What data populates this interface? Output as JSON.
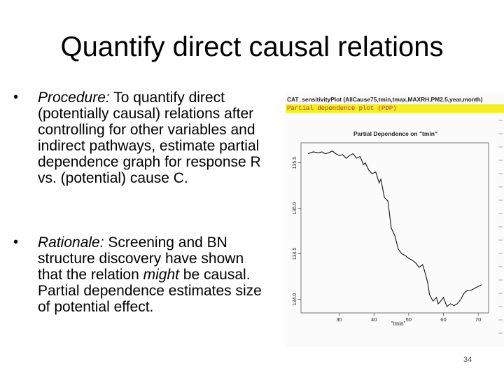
{
  "slide": {
    "title": "Quantify direct causal relations",
    "page_number": "34"
  },
  "bullets": [
    {
      "dot": "•",
      "label": "Procedure:",
      "text": " To quantify direct (potentially causal) relations after controlling for other variables and indirect pathways, estimate partial dependence graph for response R vs. (potential) cause C."
    },
    {
      "dot": "•",
      "label": "Rationale:",
      "text_a": "  Screening and BN structure discovery have shown that the relation ",
      "text_em": "might",
      "text_b": " be causal. Partial dependence estimates size of potential effect."
    }
  ],
  "screenshot": {
    "command": "CAT_sensitivityPlot (AllCause75,tmin,tmax,MAXRH,PM2.5,year,month)",
    "subtitle": "Partial dependence plot (PDP)"
  },
  "chart_data": {
    "type": "line",
    "title": "Partial Dependence on \"tmin\"",
    "xlabel": "\"tmin\"",
    "ylabel": "",
    "xlim": [
      19,
      73
    ],
    "ylim": [
      133.85,
      135.72
    ],
    "x_ticks": [
      30,
      40,
      50,
      60,
      70
    ],
    "y_ticks": [
      134.0,
      134.5,
      135.0,
      135.5
    ],
    "y_tick_labels": [
      "134.0",
      "134.5",
      "135.0",
      "135.5"
    ],
    "grid": false,
    "series": [
      {
        "x": [
          21,
          22.5,
          24,
          25,
          26,
          27,
          28,
          29,
          30,
          31,
          32,
          33,
          34,
          35,
          36,
          37,
          37.5,
          38.5,
          39.5,
          40.5,
          41.5,
          42,
          43,
          44,
          45,
          46,
          47,
          48,
          49,
          50,
          51,
          52,
          53,
          54,
          54.5,
          55,
          55.5,
          56,
          57,
          58,
          58.5,
          59,
          60,
          61,
          62,
          63,
          64,
          65,
          66,
          67,
          68,
          69,
          70,
          71
        ],
        "values": [
          135.6,
          135.62,
          135.61,
          135.62,
          135.6,
          135.61,
          135.63,
          135.6,
          135.58,
          135.59,
          135.55,
          135.58,
          135.6,
          135.55,
          135.57,
          135.48,
          135.5,
          135.42,
          135.38,
          135.4,
          135.28,
          135.32,
          135.12,
          135.08,
          134.78,
          134.7,
          134.55,
          134.5,
          134.48,
          134.45,
          134.43,
          134.4,
          134.35,
          134.38,
          134.32,
          134.25,
          134.18,
          134.05,
          133.98,
          134.02,
          133.95,
          133.97,
          134.02,
          133.92,
          133.95,
          133.93,
          133.95,
          134.0,
          134.07,
          134.1,
          134.1,
          134.12,
          134.14,
          134.16
        ]
      }
    ]
  }
}
